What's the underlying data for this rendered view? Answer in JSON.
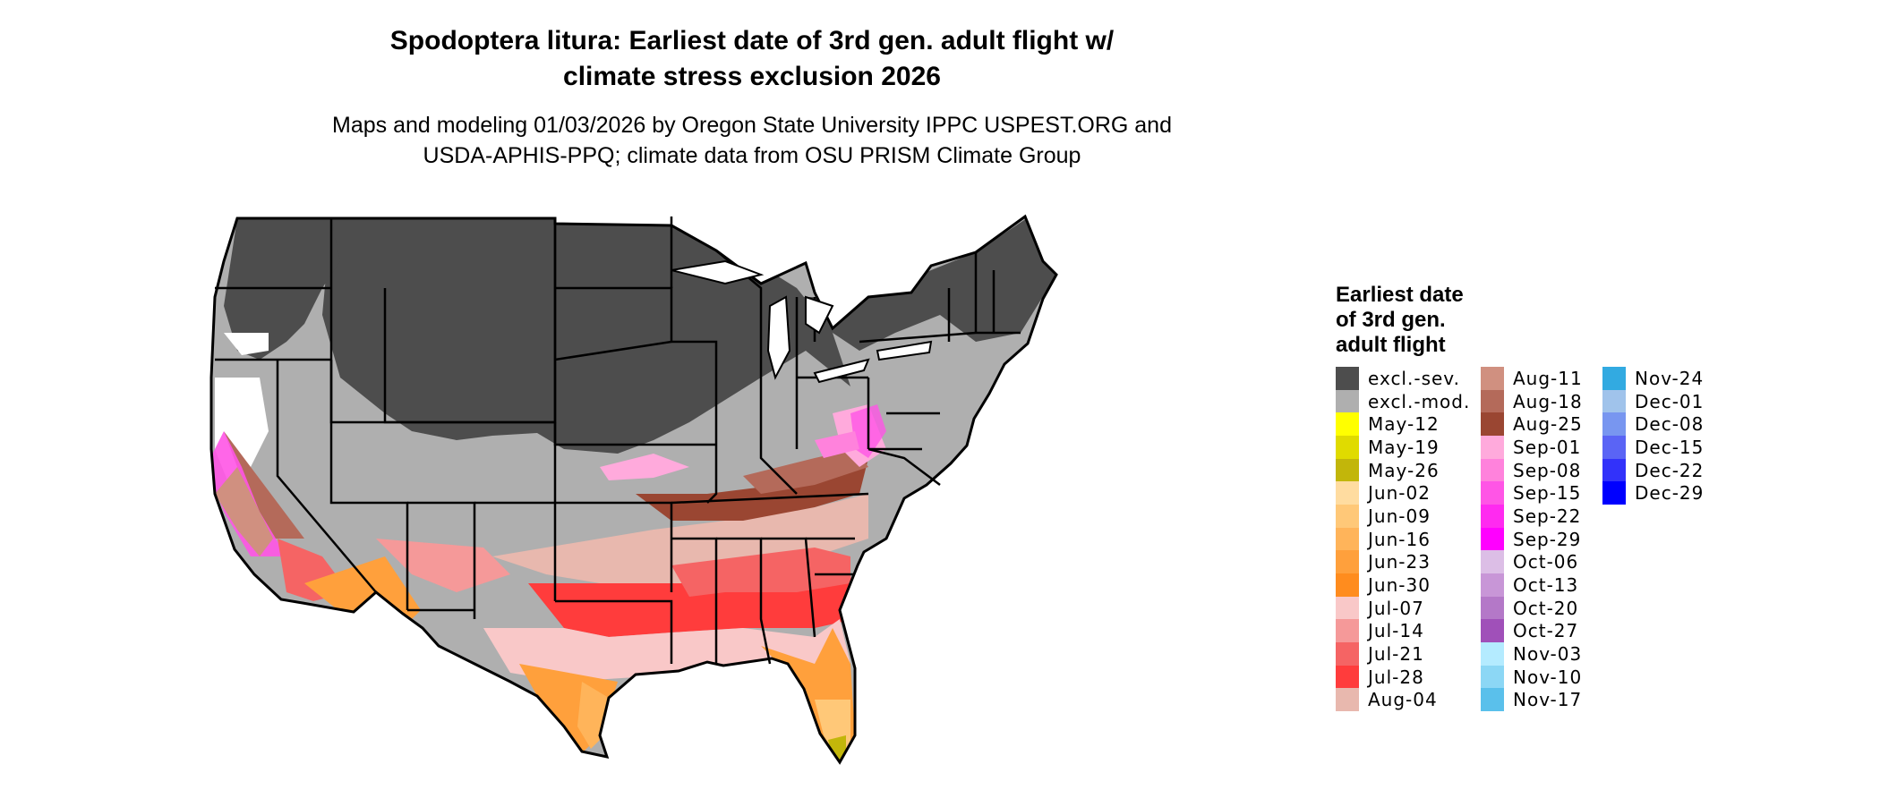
{
  "title": {
    "line1": "Spodoptera litura: Earliest date of 3rd gen. adult flight w/",
    "line2": "climate stress exclusion 2026"
  },
  "subtitle": {
    "line1": "Maps and modeling 01/03/2026 by Oregon State University IPPC USPEST.ORG and",
    "line2": "USDA-APHIS-PPQ; climate data from OSU PRISM Climate Group"
  },
  "legend": {
    "title_lines": [
      "Earliest date",
      "of 3rd gen.",
      "adult flight"
    ],
    "columns": [
      [
        {
          "label": "excl.-sev.",
          "color": "#4d4d4d"
        },
        {
          "label": "excl.-mod.",
          "color": "#afafaf"
        },
        {
          "label": "May-12",
          "color": "#ffff00"
        },
        {
          "label": "May-19",
          "color": "#e0db00"
        },
        {
          "label": "May-26",
          "color": "#c2b60a"
        },
        {
          "label": "Jun-02",
          "color": "#ffdca0"
        },
        {
          "label": "Jun-09",
          "color": "#ffc878"
        },
        {
          "label": "Jun-16",
          "color": "#ffb45a"
        },
        {
          "label": "Jun-23",
          "color": "#ffa03c"
        },
        {
          "label": "Jun-30",
          "color": "#ff8c1e"
        },
        {
          "label": "Jul-07",
          "color": "#f9c8c8"
        },
        {
          "label": "Jul-14",
          "color": "#f59999"
        },
        {
          "label": "Jul-21",
          "color": "#f56464"
        },
        {
          "label": "Jul-28",
          "color": "#ff3c3c"
        },
        {
          "label": "Aug-04",
          "color": "#e8b8ae"
        }
      ],
      [
        {
          "label": "Aug-11",
          "color": "#d09080"
        },
        {
          "label": "Aug-18",
          "color": "#b46a5a"
        },
        {
          "label": "Aug-25",
          "color": "#9a4632"
        },
        {
          "label": "Sep-01",
          "color": "#ffaadc"
        },
        {
          "label": "Sep-08",
          "color": "#ff82dc"
        },
        {
          "label": "Sep-15",
          "color": "#ff55e6"
        },
        {
          "label": "Sep-22",
          "color": "#ff2af0"
        },
        {
          "label": "Sep-29",
          "color": "#ff00ff"
        },
        {
          "label": "Oct-06",
          "color": "#dcbee6"
        },
        {
          "label": "Oct-13",
          "color": "#c896d7"
        },
        {
          "label": "Oct-20",
          "color": "#b478c8"
        },
        {
          "label": "Oct-27",
          "color": "#a050b9"
        },
        {
          "label": "Nov-03",
          "color": "#b4ebff"
        },
        {
          "label": "Nov-10",
          "color": "#8cd7f5"
        },
        {
          "label": "Nov-17",
          "color": "#5ac0eb"
        }
      ],
      [
        {
          "label": "Nov-24",
          "color": "#32aae1"
        },
        {
          "label": "Dec-01",
          "color": "#a0c3eb"
        },
        {
          "label": "Dec-08",
          "color": "#7896f0"
        },
        {
          "label": "Dec-15",
          "color": "#5a64f5"
        },
        {
          "label": "Dec-22",
          "color": "#3232fa"
        },
        {
          "label": "Dec-29",
          "color": "#0000ff"
        }
      ]
    ]
  }
}
